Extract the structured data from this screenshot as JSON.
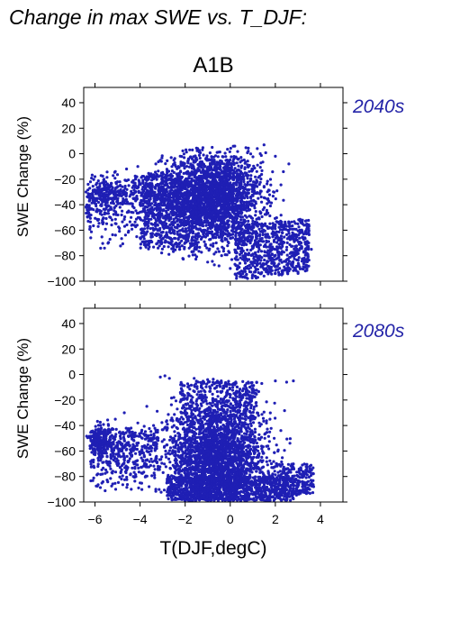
{
  "figure_title": "Change in max SWE vs. T_DJF:",
  "scenario": "A1B",
  "xlabel": "T(DJF,degC)",
  "point_color": "#1f1fb4",
  "period_label_color": "#2424a8",
  "chart_data": [
    {
      "type": "scatter",
      "period": "2040s",
      "ylabel": "SWE Change (%)",
      "xlabel": "",
      "xlim": [
        -6.5,
        5
      ],
      "ylim": [
        -100,
        52
      ],
      "xticks": [
        -6,
        -4,
        -2,
        0,
        2,
        4
      ],
      "yticks": [
        -100,
        -80,
        -60,
        -40,
        -20,
        0,
        20,
        40
      ],
      "grid": false,
      "cloud_description": "dense point cloud, densest between about -2.5 and 1 degC and -10 to -60 %, x range about -6.5 to 3.7, y range about -98 to 7",
      "points": [
        [
          -6.4,
          -30
        ],
        [
          -6.2,
          -22
        ],
        [
          -6.0,
          -18
        ],
        [
          -5.9,
          -35
        ],
        [
          -5.8,
          -28
        ],
        [
          -5.7,
          -40
        ],
        [
          -5.6,
          -20
        ],
        [
          -5.5,
          -32
        ],
        [
          -5.4,
          -25
        ],
        [
          -5.3,
          -42
        ],
        [
          -5.2,
          -30
        ],
        [
          -5.1,
          -14
        ],
        [
          -5.0,
          -38
        ],
        [
          -4.9,
          -22
        ],
        [
          -4.8,
          -45
        ],
        [
          -4.7,
          -30
        ],
        [
          -4.6,
          -12
        ],
        [
          -4.5,
          -25
        ],
        [
          -4.4,
          -50
        ],
        [
          -4.3,
          -35
        ],
        [
          -4.2,
          -20
        ],
        [
          -4.1,
          -10
        ],
        [
          -4.0,
          -40
        ],
        [
          -3.9,
          -28
        ],
        [
          -3.8,
          -55
        ],
        [
          -3.7,
          -18
        ],
        [
          -3.6,
          -45
        ],
        [
          -3.5,
          -32
        ],
        [
          -3.4,
          -60
        ],
        [
          -3.3,
          -8
        ],
        [
          -3.2,
          -25
        ],
        [
          -3.1,
          -50
        ],
        [
          -3.0,
          -38
        ],
        [
          -2.9,
          -65
        ],
        [
          -2.8,
          -15
        ],
        [
          -2.7,
          -42
        ],
        [
          -2.6,
          -58
        ],
        [
          -2.5,
          -5
        ],
        [
          -2.4,
          -70
        ],
        [
          -2.3,
          -30
        ],
        [
          -1.5,
          -75
        ],
        [
          -1.0,
          -85
        ],
        [
          -0.5,
          -88
        ],
        [
          0.0,
          -90
        ],
        [
          0.5,
          -92
        ],
        [
          1.0,
          -95
        ],
        [
          1.5,
          -96
        ],
        [
          2.0,
          -94
        ],
        [
          2.5,
          -90
        ],
        [
          3.0,
          -88
        ],
        [
          3.3,
          -85
        ],
        [
          3.6,
          -75
        ],
        [
          -0.8,
          5
        ],
        [
          0.2,
          6
        ],
        [
          1.2,
          4
        ],
        [
          2.0,
          -2
        ],
        [
          2.6,
          -8
        ],
        [
          1.5,
          7
        ],
        [
          -1.8,
          3
        ],
        [
          0.8,
          2
        ]
      ]
    },
    {
      "type": "scatter",
      "period": "2080s",
      "ylabel": "SWE Change (%)",
      "xlabel": "T(DJF,degC)",
      "xlim": [
        -6.5,
        5
      ],
      "ylim": [
        -100,
        52
      ],
      "xticks": [
        -6,
        -4,
        -2,
        0,
        2,
        4
      ],
      "yticks": [
        -100,
        -80,
        -60,
        -40,
        -20,
        0,
        20,
        40
      ],
      "grid": false,
      "cloud_description": "dense point cloud, densest between about -2.5 and 1.5 degC and -30 to -95 %, x range about -6.3 to 3.8, y range about -99 to -1",
      "points": [
        [
          -6.2,
          -50
        ],
        [
          -6.0,
          -45
        ],
        [
          -5.9,
          -58
        ],
        [
          -5.8,
          -52
        ],
        [
          -5.7,
          -62
        ],
        [
          -5.6,
          -48
        ],
        [
          -5.5,
          -55
        ],
        [
          -5.4,
          -40
        ],
        [
          -5.3,
          -65
        ],
        [
          -5.2,
          -50
        ],
        [
          -5.1,
          -35
        ],
        [
          -5.0,
          -70
        ],
        [
          -4.9,
          -45
        ],
        [
          -4.8,
          -60
        ],
        [
          -4.7,
          -30
        ],
        [
          -4.6,
          -75
        ],
        [
          -4.5,
          -55
        ],
        [
          -4.4,
          -42
        ],
        [
          -4.3,
          -80
        ],
        [
          -4.2,
          -62
        ],
        [
          -4.1,
          -38
        ],
        [
          -4.0,
          -85
        ],
        [
          -3.9,
          -50
        ],
        [
          -3.8,
          -70
        ],
        [
          -3.7,
          -25
        ],
        [
          -3.6,
          -88
        ],
        [
          -3.5,
          -60
        ],
        [
          -3.4,
          -40
        ],
        [
          -3.3,
          -90
        ],
        [
          -3.2,
          -72
        ],
        [
          -3.1,
          -2
        ],
        [
          -2.9,
          -1
        ],
        [
          -2.7,
          -3
        ],
        [
          -2.5,
          -18
        ],
        [
          -2.2,
          -8
        ],
        [
          -1.6,
          -3
        ],
        [
          -1.0,
          -4
        ],
        [
          -0.4,
          -5
        ],
        [
          0.2,
          -8
        ],
        [
          0.8,
          -6
        ],
        [
          1.4,
          -7
        ],
        [
          2.0,
          -5
        ],
        [
          2.5,
          -6
        ],
        [
          2.8,
          -5
        ],
        [
          3.0,
          -85
        ],
        [
          3.2,
          -88
        ],
        [
          3.5,
          -90
        ],
        [
          3.7,
          -88
        ],
        [
          -2.0,
          -97
        ],
        [
          -1.0,
          -98
        ],
        [
          0.0,
          -99
        ],
        [
          1.0,
          -98
        ],
        [
          2.0,
          -97
        ],
        [
          2.5,
          -96
        ],
        [
          -2.8,
          -92
        ],
        [
          -1.8,
          -94
        ],
        [
          0.6,
          -96
        ],
        [
          1.6,
          -95
        ],
        [
          -0.6,
          -92
        ],
        [
          2.2,
          -90
        ]
      ]
    }
  ]
}
